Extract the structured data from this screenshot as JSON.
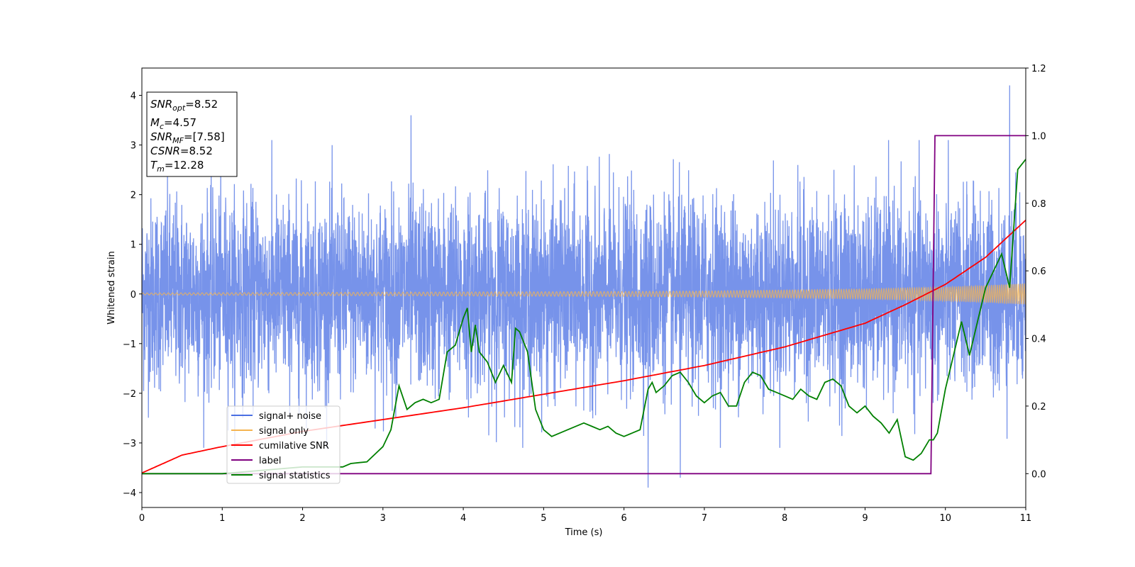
{
  "chart_data": {
    "type": "line",
    "title": "",
    "xlabel": "Time (s)",
    "ylabel": "Whitened strain",
    "xlim": [
      0,
      11
    ],
    "ylim_left": [
      -4.3,
      4.55
    ],
    "ylim_right": [
      -0.1,
      1.2
    ],
    "xticks": [
      "0",
      "1",
      "2",
      "3",
      "4",
      "5",
      "6",
      "7",
      "8",
      "9",
      "10",
      "11"
    ],
    "yticks_left": [
      "−4",
      "−3",
      "−2",
      "−1",
      "0",
      "1",
      "2",
      "3",
      "4"
    ],
    "yticks_right": [
      "0.0",
      "0.2",
      "0.4",
      "0.6",
      "0.8",
      "1.0",
      "1.2"
    ],
    "grid": false,
    "legend_position": "bottom-left",
    "annotation": {
      "snr_opt": "=8.52",
      "mc": "=4.57",
      "snr_mf": "=[7.58]",
      "csnr": "=8.52",
      "tm": "=12.28"
    },
    "series": [
      {
        "name": "signal+ noise",
        "axis": "left",
        "color": "#4a6fe3",
        "description_values": "dense noise, roughly spanning -2.4 to 2.4 with spikes to about 4.2 at t=10.8 and -3.9 at t=6.3",
        "peaks": [
          [
            3.35,
            3.6
          ],
          [
            6.3,
            -3.9
          ],
          [
            6.7,
            -3.7
          ],
          [
            10.8,
            4.2
          ]
        ]
      },
      {
        "name": "signal only",
        "axis": "left",
        "color": "#f5b450",
        "envelope_t": [
          0,
          2,
          4,
          6,
          7,
          8,
          9,
          10,
          10.5,
          11
        ],
        "envelope_amp": [
          0.02,
          0.03,
          0.04,
          0.05,
          0.06,
          0.08,
          0.1,
          0.14,
          0.17,
          0.21
        ]
      },
      {
        "name": "cumilative SNR",
        "axis": "right",
        "color": "#ff0000",
        "t": [
          0,
          0.5,
          1,
          2,
          3,
          4,
          5,
          6,
          7,
          8,
          9,
          9.5,
          10,
          10.5,
          11
        ],
        "values": [
          0.002,
          0.055,
          0.08,
          0.125,
          0.16,
          0.195,
          0.235,
          0.275,
          0.32,
          0.375,
          0.445,
          0.5,
          0.56,
          0.64,
          0.75
        ]
      },
      {
        "name": "label",
        "axis": "right",
        "color": "#800080",
        "t": [
          0,
          9.82,
          9.87,
          11
        ],
        "values": [
          0.0,
          0.0,
          1.0,
          1.0
        ]
      },
      {
        "name": "signal statistics",
        "axis": "right",
        "color": "#008000",
        "t": [
          0,
          1,
          2,
          2.5,
          2.6,
          2.8,
          3.0,
          3.1,
          3.2,
          3.3,
          3.4,
          3.5,
          3.6,
          3.7,
          3.8,
          3.9,
          4.0,
          4.05,
          4.1,
          4.15,
          4.2,
          4.3,
          4.4,
          4.5,
          4.6,
          4.65,
          4.7,
          4.8,
          4.9,
          5.0,
          5.1,
          5.2,
          5.3,
          5.5,
          5.6,
          5.7,
          5.8,
          5.9,
          6.0,
          6.1,
          6.2,
          6.3,
          6.35,
          6.4,
          6.5,
          6.6,
          6.7,
          6.8,
          6.9,
          7.0,
          7.1,
          7.2,
          7.3,
          7.4,
          7.5,
          7.6,
          7.7,
          7.8,
          7.9,
          8.0,
          8.1,
          8.2,
          8.3,
          8.4,
          8.5,
          8.6,
          8.7,
          8.8,
          8.9,
          9.0,
          9.1,
          9.2,
          9.3,
          9.4,
          9.5,
          9.6,
          9.7,
          9.8,
          9.85,
          9.9,
          10.0,
          10.1,
          10.2,
          10.3,
          10.4,
          10.5,
          10.6,
          10.7,
          10.8,
          10.9,
          11.0
        ],
        "values": [
          0.0,
          0.0,
          0.02,
          0.02,
          0.03,
          0.035,
          0.08,
          0.13,
          0.26,
          0.19,
          0.21,
          0.22,
          0.21,
          0.22,
          0.36,
          0.38,
          0.46,
          0.49,
          0.36,
          0.44,
          0.36,
          0.33,
          0.27,
          0.32,
          0.27,
          0.43,
          0.42,
          0.36,
          0.19,
          0.13,
          0.11,
          0.12,
          0.13,
          0.15,
          0.14,
          0.13,
          0.14,
          0.12,
          0.11,
          0.12,
          0.13,
          0.25,
          0.27,
          0.24,
          0.26,
          0.29,
          0.3,
          0.27,
          0.23,
          0.21,
          0.23,
          0.24,
          0.2,
          0.2,
          0.27,
          0.3,
          0.29,
          0.25,
          0.24,
          0.23,
          0.22,
          0.25,
          0.23,
          0.22,
          0.27,
          0.28,
          0.26,
          0.2,
          0.18,
          0.2,
          0.17,
          0.15,
          0.12,
          0.16,
          0.05,
          0.04,
          0.06,
          0.1,
          0.1,
          0.12,
          0.25,
          0.35,
          0.45,
          0.35,
          0.45,
          0.55,
          0.6,
          0.65,
          0.55,
          0.9,
          0.93
        ]
      }
    ]
  }
}
